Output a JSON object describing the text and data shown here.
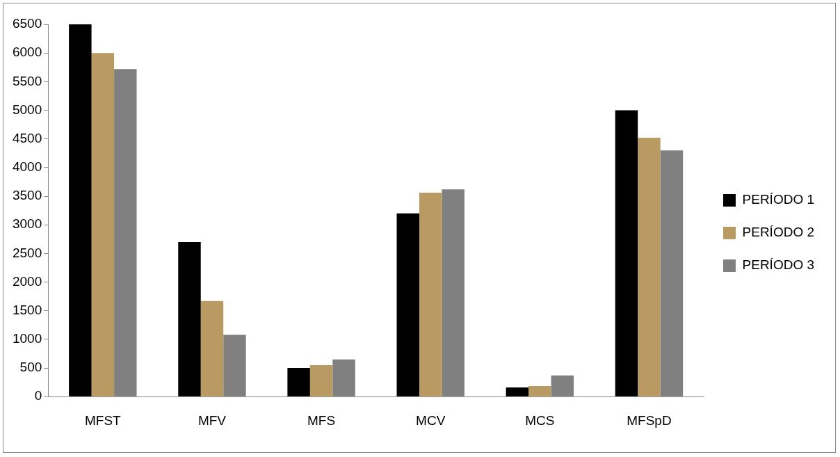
{
  "chart_data": {
    "type": "bar",
    "categories": [
      "MFST",
      "MFV",
      "MFS",
      "MCV",
      "MCS",
      "MFSpD"
    ],
    "series": [
      {
        "name": "PERÍODO 1",
        "color": "#000000",
        "values": [
          6500,
          2700,
          500,
          3200,
          160,
          5000
        ]
      },
      {
        "name": "PERÍODO 2",
        "color": "#b99a62",
        "values": [
          6000,
          1670,
          550,
          3560,
          185,
          4520
        ]
      },
      {
        "name": "PERÍODO 3",
        "color": "#808080",
        "values": [
          5720,
          1080,
          650,
          3620,
          370,
          4300
        ]
      }
    ],
    "ylim": [
      0,
      6500
    ],
    "yticks": [
      0,
      500,
      1000,
      1500,
      2000,
      2500,
      3000,
      3500,
      4000,
      4500,
      5000,
      5500,
      6000,
      6500
    ],
    "grid": false,
    "legend": "right"
  }
}
